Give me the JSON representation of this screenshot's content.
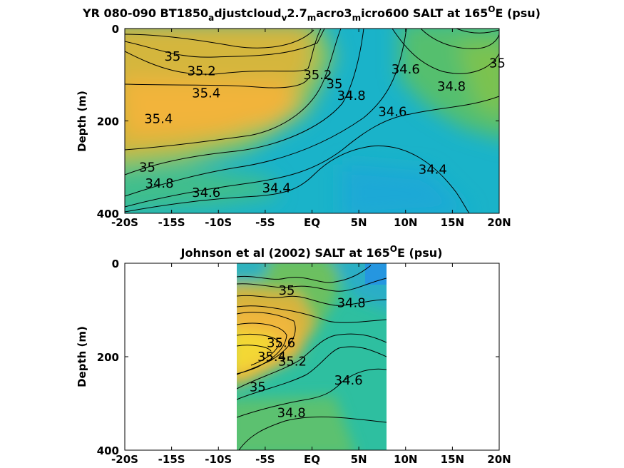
{
  "chart_data": [
    {
      "type": "contour",
      "title": {
        "pre": "YR 080-090 BT1850",
        "s1": "a",
        "t1": "djustcloud",
        "s2": "v",
        "t2": "2.7",
        "s3": "m",
        "t3": "acro3",
        "s4": "m",
        "t4": "icro600 SALT at 165",
        "sup": "O",
        "post": "E (psu)"
      },
      "ylabel": "Depth (m)",
      "xlim": [
        -20,
        20
      ],
      "ylim": [
        400,
        0
      ],
      "xticks": [
        "-20S",
        "-15S",
        "-10S",
        "-5S",
        "EQ",
        "5N",
        "10N",
        "15N",
        "20N"
      ],
      "yticks": [
        "0",
        "200",
        "400"
      ],
      "contour_labels": [
        {
          "text": "35",
          "lat": -14.9,
          "depth": 60
        },
        {
          "text": "35.2",
          "lat": -11.8,
          "depth": 92
        },
        {
          "text": "35.4",
          "lat": -11.3,
          "depth": 140
        },
        {
          "text": "35.4",
          "lat": -16.4,
          "depth": 195
        },
        {
          "text": "35.2",
          "lat": 0.6,
          "depth": 100
        },
        {
          "text": "35",
          "lat": 2.4,
          "depth": 120
        },
        {
          "text": "34.8",
          "lat": 4.2,
          "depth": 145
        },
        {
          "text": "34.6",
          "lat": 8.6,
          "depth": 180
        },
        {
          "text": "34.6",
          "lat": 10.0,
          "depth": 88
        },
        {
          "text": "34.8",
          "lat": 14.9,
          "depth": 125
        },
        {
          "text": "35",
          "lat": 19.8,
          "depth": 75
        },
        {
          "text": "35",
          "lat": -17.6,
          "depth": 300
        },
        {
          "text": "34.8",
          "lat": -16.3,
          "depth": 335
        },
        {
          "text": "34.6",
          "lat": -11.3,
          "depth": 355
        },
        {
          "text": "34.4",
          "lat": -3.8,
          "depth": 345
        },
        {
          "text": "34.4",
          "lat": 12.9,
          "depth": 305
        }
      ]
    },
    {
      "type": "contour",
      "title": {
        "pre": "Johnson et al (2002) SALT at 165",
        "sup": "O",
        "post": "E (psu)"
      },
      "ylabel": "Depth (m)",
      "xlim": [
        -20,
        20
      ],
      "ylim": [
        400,
        0
      ],
      "data_lat_range": [
        -8,
        8
      ],
      "xticks": [
        "-20S",
        "-15S",
        "-10S",
        "-5S",
        "EQ",
        "5N",
        "10N",
        "15N",
        "20N"
      ],
      "yticks": [
        "0",
        "200",
        "400"
      ],
      "contour_labels": [
        {
          "text": "35",
          "lat": -2.7,
          "depth": 58
        },
        {
          "text": "34.8",
          "lat": 4.2,
          "depth": 85
        },
        {
          "text": "35.6",
          "lat": -3.3,
          "depth": 170
        },
        {
          "text": "35.4",
          "lat": -4.3,
          "depth": 200
        },
        {
          "text": "35.2",
          "lat": -2.1,
          "depth": 210
        },
        {
          "text": "34.6",
          "lat": 3.9,
          "depth": 250
        },
        {
          "text": "35",
          "lat": -5.8,
          "depth": 265
        },
        {
          "text": "34.8",
          "lat": -2.2,
          "depth": 320
        }
      ]
    }
  ],
  "colors": {
    "salty": "#f2b43a",
    "fresh": "#1ab3c9",
    "mid": "#4ec17e",
    "freshest": "#2596e0"
  }
}
